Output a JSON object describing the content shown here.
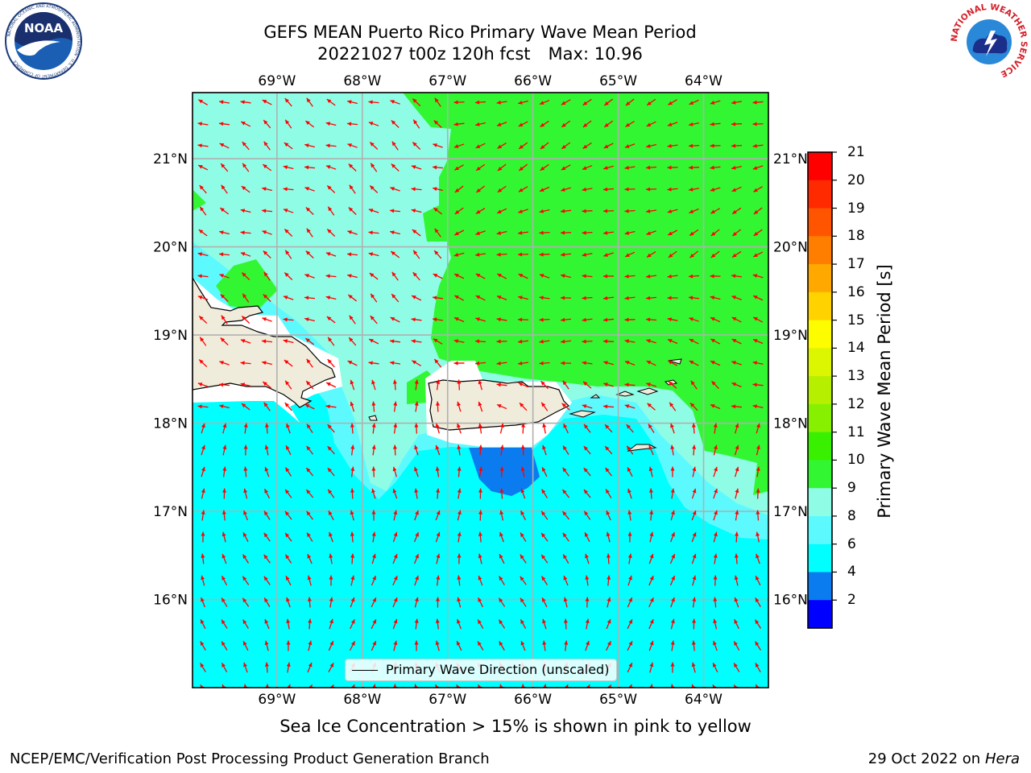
{
  "header": {
    "title_line1": "GEFS MEAN Puerto Rico Primary Wave Mean Period",
    "title_line2": "20221027 t00z 120h fcst",
    "title_max": "Max: 10.96"
  },
  "logos": {
    "noaa_text": "NOAA",
    "noaa_ring_text": "NATIONAL OCEANIC AND ATMOSPHERIC ADMINISTRATION · U.S. DEPARTMENT OF COMMERCE",
    "nws_ring_text": "NATIONAL WEATHER SERVICE"
  },
  "map": {
    "lon_labels": [
      "69°W",
      "68°W",
      "67°W",
      "66°W",
      "65°W",
      "64°W"
    ],
    "lat_labels": [
      "21°N",
      "20°N",
      "19°N",
      "18°N",
      "17°N",
      "16°N"
    ],
    "lon_values": [
      -69,
      -68,
      -67,
      -66,
      -65,
      -64
    ],
    "lat_values": [
      21,
      20,
      19,
      18,
      17,
      16
    ],
    "extent": {
      "lon_min": -69.99,
      "lon_max": -63.24,
      "lat_min": 15.0,
      "lat_max": 21.75
    },
    "legend_label": "Primary Wave Direction (unscaled)",
    "arrow_color": "#ff0000",
    "land_color": "#efecdc",
    "layers": {
      "band_6_8": "#00ffff",
      "band_8_9": "#5cfaff",
      "band_9_10": "#8ffde6",
      "band_10_11": "#33f633",
      "band_4_6": "#0b7cf0"
    }
  },
  "colorbar": {
    "title": "Primary Wave Mean Period [s]",
    "ticks": [
      "21",
      "20",
      "19",
      "18",
      "17",
      "16",
      "15",
      "14",
      "13",
      "12",
      "11",
      "10",
      "9",
      "8",
      "6",
      "4",
      "2"
    ],
    "colors": [
      "#ff0000",
      "#ff2a00",
      "#ff5400",
      "#ff7e00",
      "#ffa800",
      "#ffd200",
      "#fdfd00",
      "#dcf500",
      "#b6f000",
      "#86f000",
      "#38f000",
      "#33f633",
      "#8ffde6",
      "#5cfaff",
      "#00ffff",
      "#0b7cf0",
      "#0000ff"
    ]
  },
  "note": "Sea Ice Concentration > 15% is shown in pink to yellow",
  "footer": {
    "left": "NCEP/EMC/Verification Post Processing Product Generation Branch",
    "date": "29 Oct 2022 on",
    "machine": "Hera"
  }
}
